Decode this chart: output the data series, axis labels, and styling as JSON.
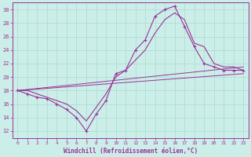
{
  "xlabel": "Windchill (Refroidissement éolien,°C)",
  "bg_color": "#cceee8",
  "grid_color": "#aad8d2",
  "line_color": "#993399",
  "xlim": [
    -0.5,
    23.5
  ],
  "ylim": [
    11,
    31
  ],
  "yticks": [
    12,
    14,
    16,
    18,
    20,
    22,
    24,
    26,
    28,
    30
  ],
  "xticks": [
    0,
    1,
    2,
    3,
    4,
    5,
    6,
    7,
    8,
    9,
    10,
    11,
    12,
    13,
    14,
    15,
    16,
    17,
    18,
    19,
    20,
    21,
    22,
    23
  ],
  "series1_x": [
    0,
    1,
    2,
    3,
    4,
    5,
    6,
    7,
    8,
    9,
    10,
    11,
    12,
    13,
    14,
    15,
    16,
    17,
    18,
    19,
    20,
    21,
    22,
    23
  ],
  "series1_y": [
    18,
    17.5,
    17,
    16.8,
    16,
    15.2,
    14,
    12,
    14.5,
    16.5,
    20.5,
    21,
    24,
    25.5,
    29,
    30,
    30.5,
    27.5,
    24.5,
    22,
    21.5,
    21,
    21,
    21
  ],
  "series2_x": [
    0,
    1,
    2,
    3,
    4,
    5,
    6,
    7,
    8,
    9,
    10,
    11,
    12,
    13,
    14,
    15,
    16,
    17,
    18,
    19,
    20,
    21,
    22,
    23
  ],
  "series2_y": [
    18,
    18,
    17.5,
    17,
    16.5,
    16,
    15,
    13.5,
    15.5,
    17.5,
    20,
    21,
    22.5,
    24,
    26.5,
    28.5,
    29.5,
    28.5,
    25,
    24.5,
    22,
    21.5,
    21.5,
    21
  ],
  "series3_x": [
    0,
    23
  ],
  "series3_y": [
    18,
    21.5
  ],
  "series4_x": [
    0,
    23
  ],
  "series4_y": [
    18,
    20.5
  ]
}
